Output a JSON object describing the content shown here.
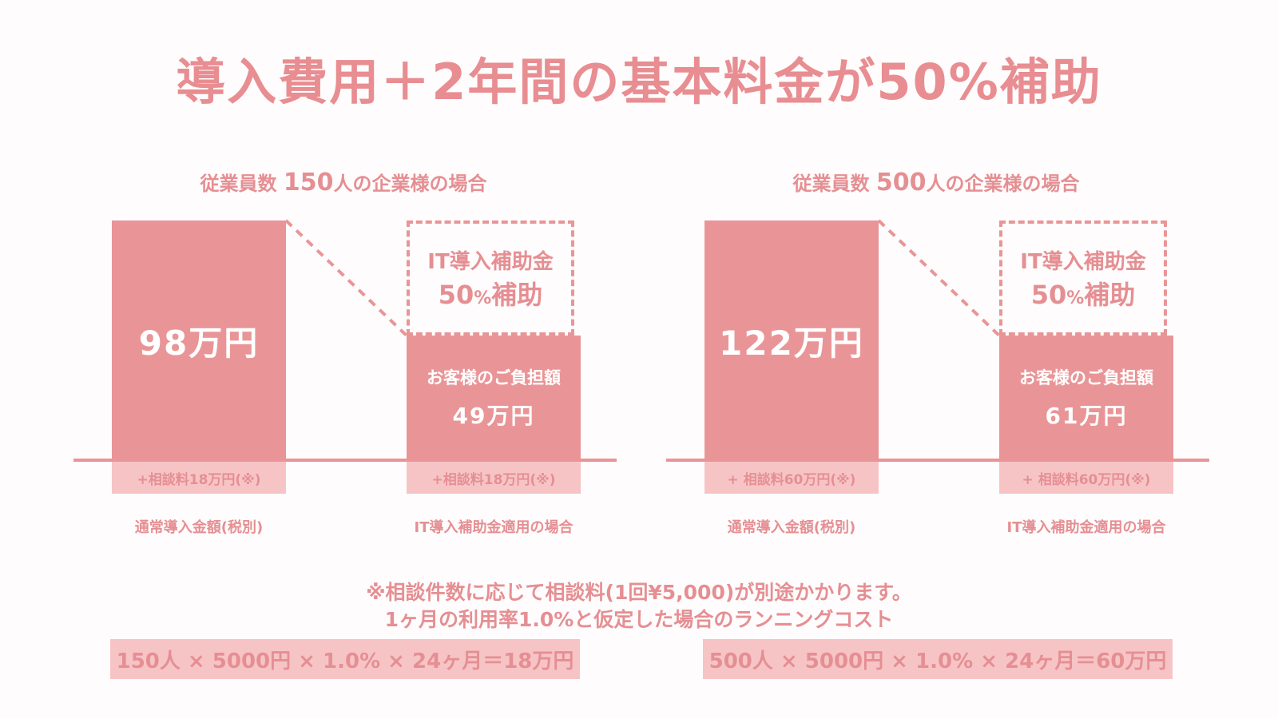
{
  "title": "導入費用＋2年間の基本料金が50%補助",
  "panels": [
    {
      "heading_pre": "従業員数 ",
      "heading_num": "150",
      "heading_post": "人の企業様の場合",
      "full_amount": "98万円",
      "subsidy_line1": "IT導入補助金",
      "subsidy_pct": "50",
      "subsidy_pct_sign": "%",
      "subsidy_word": "補助",
      "pay_label": "お客様のご負担額",
      "pay_amount": "49万円",
      "fee_left": "+相談料18万円(※)",
      "fee_right": "+相談料18万円(※)",
      "caption_left": "通常導入金額(税別)",
      "caption_right": "IT導入補助金適用の場合"
    },
    {
      "heading_pre": "従業員数 ",
      "heading_num": "500",
      "heading_post": "人の企業様の場合",
      "full_amount": "122万円",
      "subsidy_line1": "IT導入補助金",
      "subsidy_pct": "50",
      "subsidy_pct_sign": "%",
      "subsidy_word": "補助",
      "pay_label": "お客様のご負担額",
      "pay_amount": "61万円",
      "fee_left": "+ 相談料60万円(※)",
      "fee_right": "+ 相談料60万円(※)",
      "caption_left": "通常導入金額(税別)",
      "caption_right": "IT導入補助金適用の場合"
    }
  ],
  "note_line1": "※相談件数に応じて相談料(1回¥5,000)が別途かかります。",
  "note_line2": "1ヶ月の利用率1.0%と仮定した場合のランニングコスト",
  "formula_left": "150人 × 5000円 × 1.0% × 24ヶ月＝18万円",
  "formula_right": "500人 × 5000円 × 1.0% × 24ヶ月＝60万円",
  "colors": {
    "bar": "#e99597",
    "fee_bg": "#f7c4c6",
    "text": "#e58f93"
  },
  "chart_data": [
    {
      "type": "bar",
      "categories": [
        "通常導入金額(税別)",
        "IT導入補助金適用の場合"
      ],
      "values": [
        98,
        49
      ],
      "subsidy_percent": 50,
      "title": "従業員数 150人の企業様の場合"
    },
    {
      "type": "bar",
      "categories": [
        "通常導入金額(税別)",
        "IT導入補助金適用の場合"
      ],
      "values": [
        122,
        61
      ],
      "subsidy_percent": 50,
      "title": "従業員数 500人の企業様の場合"
    }
  ]
}
